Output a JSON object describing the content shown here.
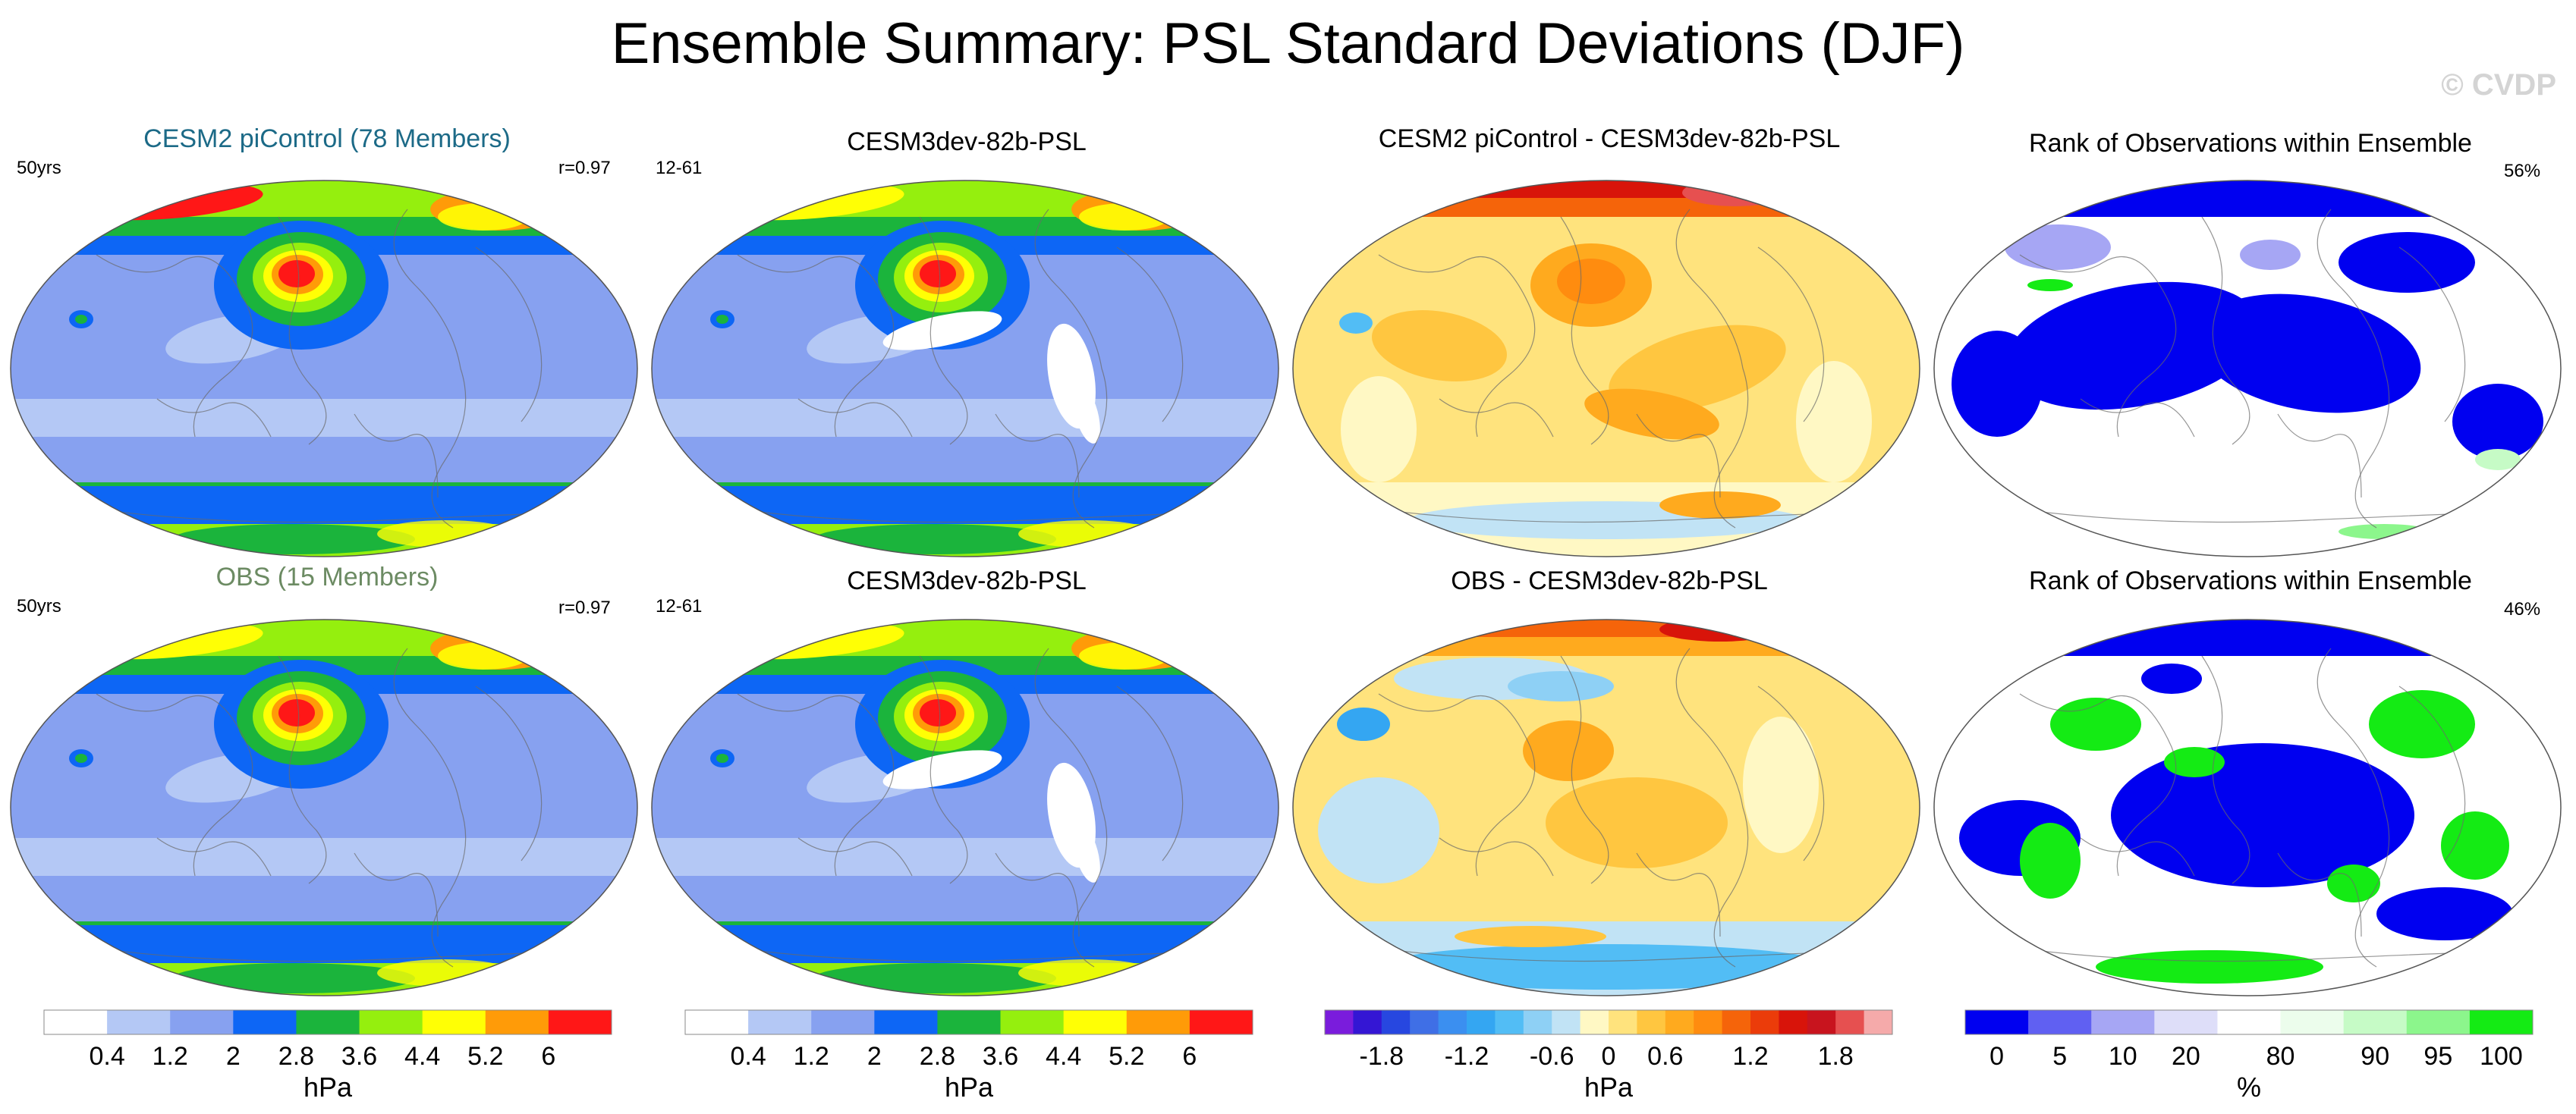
{
  "page_title": "Ensemble Summary: PSL Standard Deviations (DJF)",
  "watermark": "© CVDP",
  "chart_data": [
    {
      "type": "heatmap",
      "panel": "r1c1",
      "title": "CESM2 piControl (78 Members)",
      "title_color": "#1c6a87",
      "left_label": "50yrs",
      "right_label": "r=0.97",
      "field": "model-std",
      "colorbar": "std"
    },
    {
      "type": "heatmap",
      "panel": "r1c2",
      "title": "CESM3dev-82b-PSL",
      "title_color": "#000000",
      "left_label": "12-61",
      "right_label": "",
      "field": "ref-std",
      "colorbar": "std"
    },
    {
      "type": "heatmap",
      "panel": "r1c3",
      "title": "CESM2 piControl - CESM3dev-82b-PSL",
      "title_color": "#000000",
      "left_label": "",
      "right_label": "",
      "field": "diff1",
      "colorbar": "diff"
    },
    {
      "type": "heatmap",
      "panel": "r1c4",
      "title": "Rank of Observations within Ensemble",
      "title_color": "#000000",
      "left_label": "",
      "right_label": "56%",
      "field": "rank1",
      "colorbar": "rank"
    },
    {
      "type": "heatmap",
      "panel": "r2c1",
      "title": "OBS (15 Members)",
      "title_color": "#6c8b63",
      "left_label": "50yrs",
      "right_label": "r=0.97",
      "field": "obs-std",
      "colorbar": "std"
    },
    {
      "type": "heatmap",
      "panel": "r2c2",
      "title": "CESM3dev-82b-PSL",
      "title_color": "#000000",
      "left_label": "12-61",
      "right_label": "",
      "field": "ref-std",
      "colorbar": "std"
    },
    {
      "type": "heatmap",
      "panel": "r2c3",
      "title": "OBS - CESM3dev-82b-PSL",
      "title_color": "#000000",
      "left_label": "",
      "right_label": "",
      "field": "diff2",
      "colorbar": "diff"
    },
    {
      "type": "heatmap",
      "panel": "r2c4",
      "title": "Rank of Observations within Ensemble",
      "title_color": "#000000",
      "left_label": "",
      "right_label": "46%",
      "field": "rank2",
      "colorbar": "rank"
    }
  ],
  "colorbars": {
    "std": {
      "unit": "hPa",
      "colors": [
        "#ffffff",
        "#b4c8f5",
        "#87a1f0",
        "#0d66f5",
        "#1bb43c",
        "#95ef0e",
        "#ffff05",
        "#ff9b08",
        "#ff1717"
      ],
      "ticks": [
        "0.4",
        "1.2",
        "2",
        "2.8",
        "3.6",
        "4.4",
        "5.2",
        "6"
      ]
    },
    "diff": {
      "unit": "hPa",
      "colors": [
        "#7a1cdc",
        "#3416d4",
        "#2747e0",
        "#3f6fe6",
        "#3b8ff0",
        "#34a6f2",
        "#52bdf5",
        "#8ed0f5",
        "#c1e3f5",
        "#fff8c4",
        "#ffe37d",
        "#ffc640",
        "#ffaa1e",
        "#ff8c0f",
        "#f5640a",
        "#eb3c0a",
        "#d8140a",
        "#c8141e",
        "#e65050",
        "#f5aaaa"
      ],
      "ticks": [
        "-1.8",
        "-1.2",
        "-0.6",
        "0",
        "0.6",
        "1.2",
        "1.8"
      ]
    },
    "rank": {
      "unit": "%",
      "colors": [
        "#0000f0",
        "#6060f2",
        "#a6a6f4",
        "#dedef9",
        "#ffffff",
        "#ecfdec",
        "#c6fbc6",
        "#8cf68c",
        "#14eb14"
      ],
      "ticks": [
        "0",
        "5",
        "10",
        "20",
        "80",
        "90",
        "95",
        "100"
      ]
    }
  }
}
